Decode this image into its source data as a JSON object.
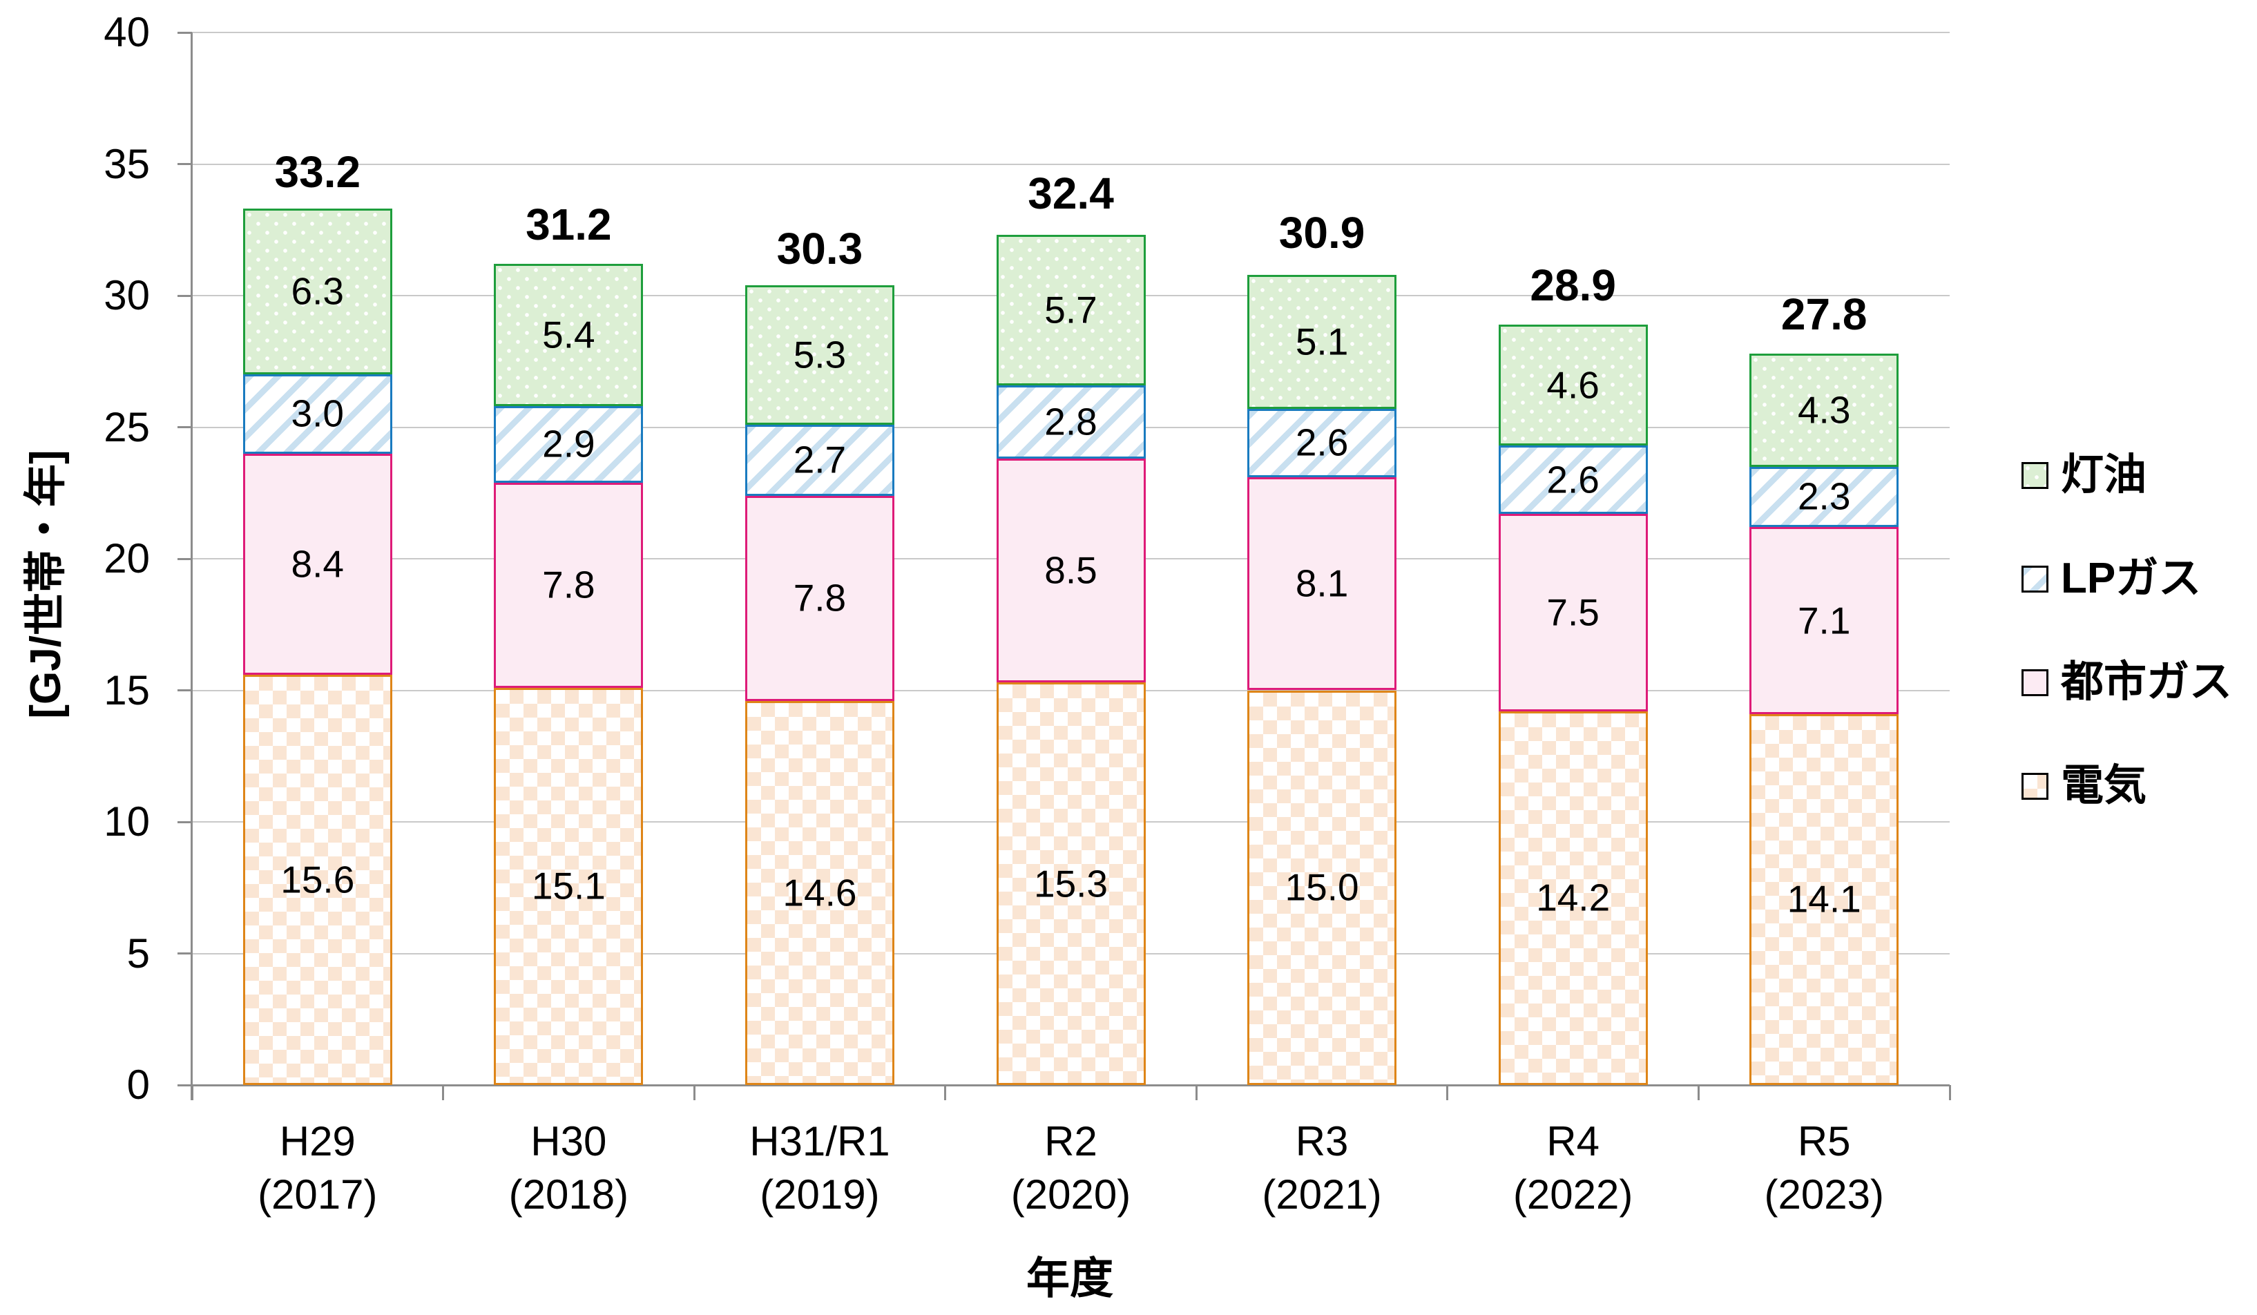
{
  "chart_data": {
    "type": "bar",
    "stacked": true,
    "title": "",
    "xlabel": "年度",
    "ylabel": "[GJ/世帯・年]",
    "ylim": [
      0,
      40
    ],
    "yticks": [
      0,
      5,
      10,
      15,
      20,
      25,
      30,
      35,
      40
    ],
    "grid": true,
    "legend_position": "right",
    "value_decimals": 1,
    "categories": [
      {
        "label": "H29",
        "year": "(2017)"
      },
      {
        "label": "H30",
        "year": "(2018)"
      },
      {
        "label": "H31/R1",
        "year": "(2019)"
      },
      {
        "label": "R2",
        "year": "(2020)"
      },
      {
        "label": "R3",
        "year": "(2021)"
      },
      {
        "label": "R4",
        "year": "(2022)"
      },
      {
        "label": "R5",
        "year": "(2023)"
      }
    ],
    "series": [
      {
        "key": "kerosene",
        "name": "灯油",
        "pattern": "white-dots-on-light-green",
        "border_color": "#1E9E3C",
        "fill_color": "#DCEFD4",
        "values": [
          6.3,
          5.4,
          5.3,
          5.7,
          5.1,
          4.6,
          4.3
        ]
      },
      {
        "key": "lpgas",
        "name": "LPガス",
        "pattern": "light-blue-diagonal-stripes",
        "border_color": "#1A7BC0",
        "fill_color": "#C9E0F0",
        "values": [
          3.0,
          2.9,
          2.7,
          2.8,
          2.6,
          2.6,
          2.3
        ]
      },
      {
        "key": "citygas",
        "name": "都市ガス",
        "pattern": "solid-light-pink",
        "border_color": "#DE1B78",
        "fill_color": "#FCEBF3",
        "values": [
          8.4,
          7.8,
          7.8,
          8.5,
          8.1,
          7.5,
          7.1
        ]
      },
      {
        "key": "electric",
        "name": "電気",
        "pattern": "light-orange-diamonds",
        "border_color": "#DE8518",
        "fill_color": "#FAE5D3",
        "values": [
          15.6,
          15.1,
          14.6,
          15.3,
          15.0,
          14.2,
          14.1
        ]
      }
    ],
    "stack_order_bottom_to_top": [
      "electric",
      "citygas",
      "lpgas",
      "kerosene"
    ],
    "totals": [
      33.2,
      31.2,
      30.3,
      32.4,
      30.9,
      28.9,
      27.8
    ],
    "axis_color": "#8C8C8C",
    "gridline_color": "#C9C9C9",
    "text_color": "#000000"
  }
}
